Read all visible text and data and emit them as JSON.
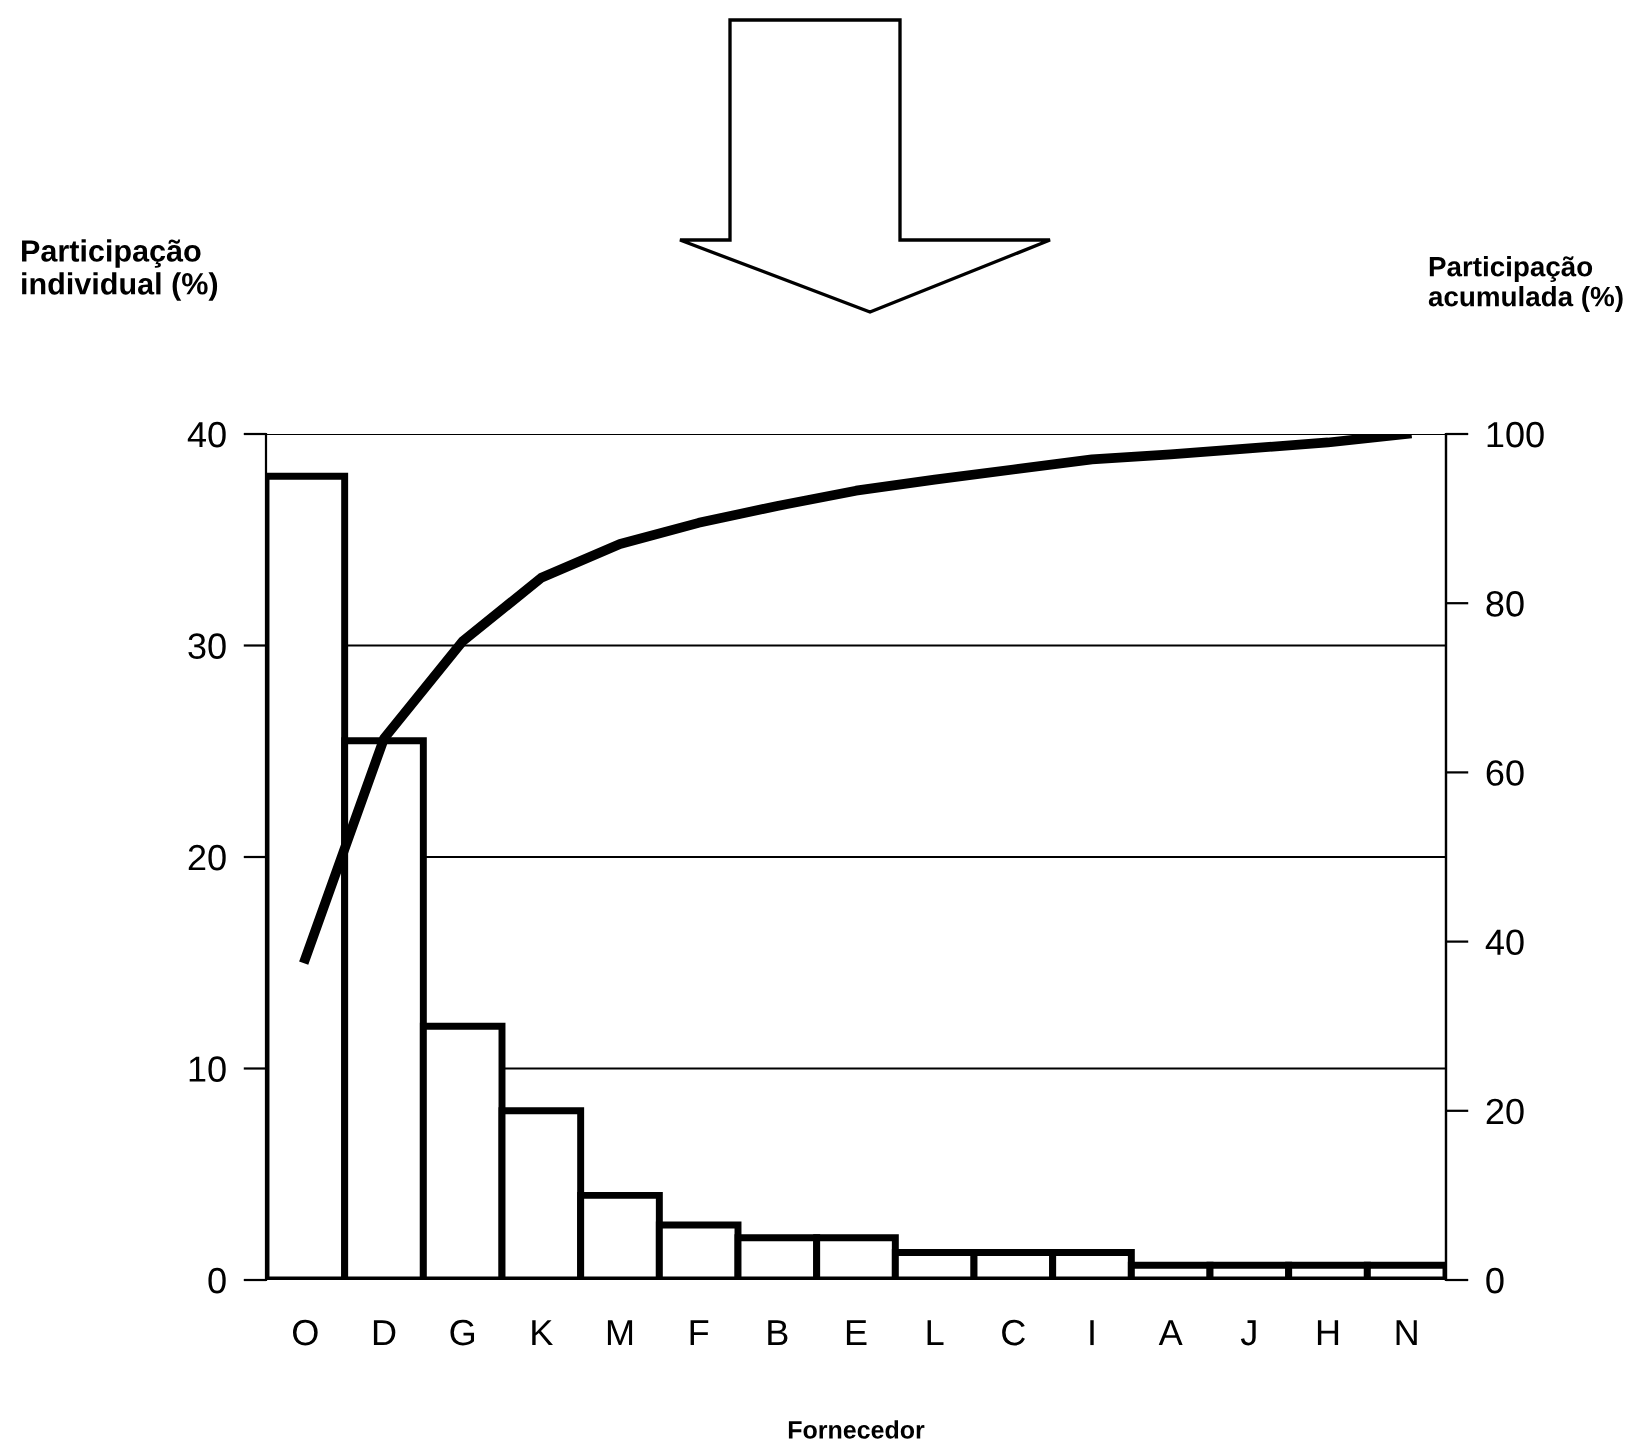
{
  "chart_data": {
    "type": "bar",
    "xlabel": "Fornecedor",
    "ylabel": "Participação\nindividual (%)",
    "y2label": "Participação\nacumulada (%)",
    "categories": [
      "O",
      "D",
      "G",
      "K",
      "M",
      "F",
      "B",
      "E",
      "L",
      "C",
      "I",
      "A",
      "J",
      "H",
      "N"
    ],
    "series": [
      {
        "color": "#ffffff",
        "values": [
          38,
          25.5,
          12,
          8,
          4,
          2.6,
          2,
          2,
          1.3,
          1.3,
          1.3,
          0.7,
          0.7,
          0.7,
          0.7
        ]
      },
      {
        "type": "line",
        "axis": "y2",
        "color": "#000000",
        "values": [
          38,
          64,
          75.5,
          83,
          87,
          89.5,
          91.5,
          93.3,
          94.6,
          95.8,
          97,
          97.6,
          98.3,
          99,
          100
        ]
      }
    ],
    "ylim": [
      0,
      40
    ],
    "yticks": [
      0,
      10,
      20,
      30,
      40
    ],
    "y2lim": [
      0,
      100
    ],
    "y2ticks": [
      0,
      20,
      40,
      60,
      80,
      100
    ],
    "grid": "y",
    "legend": false,
    "marker": "none",
    "line_style": "solid"
  }
}
